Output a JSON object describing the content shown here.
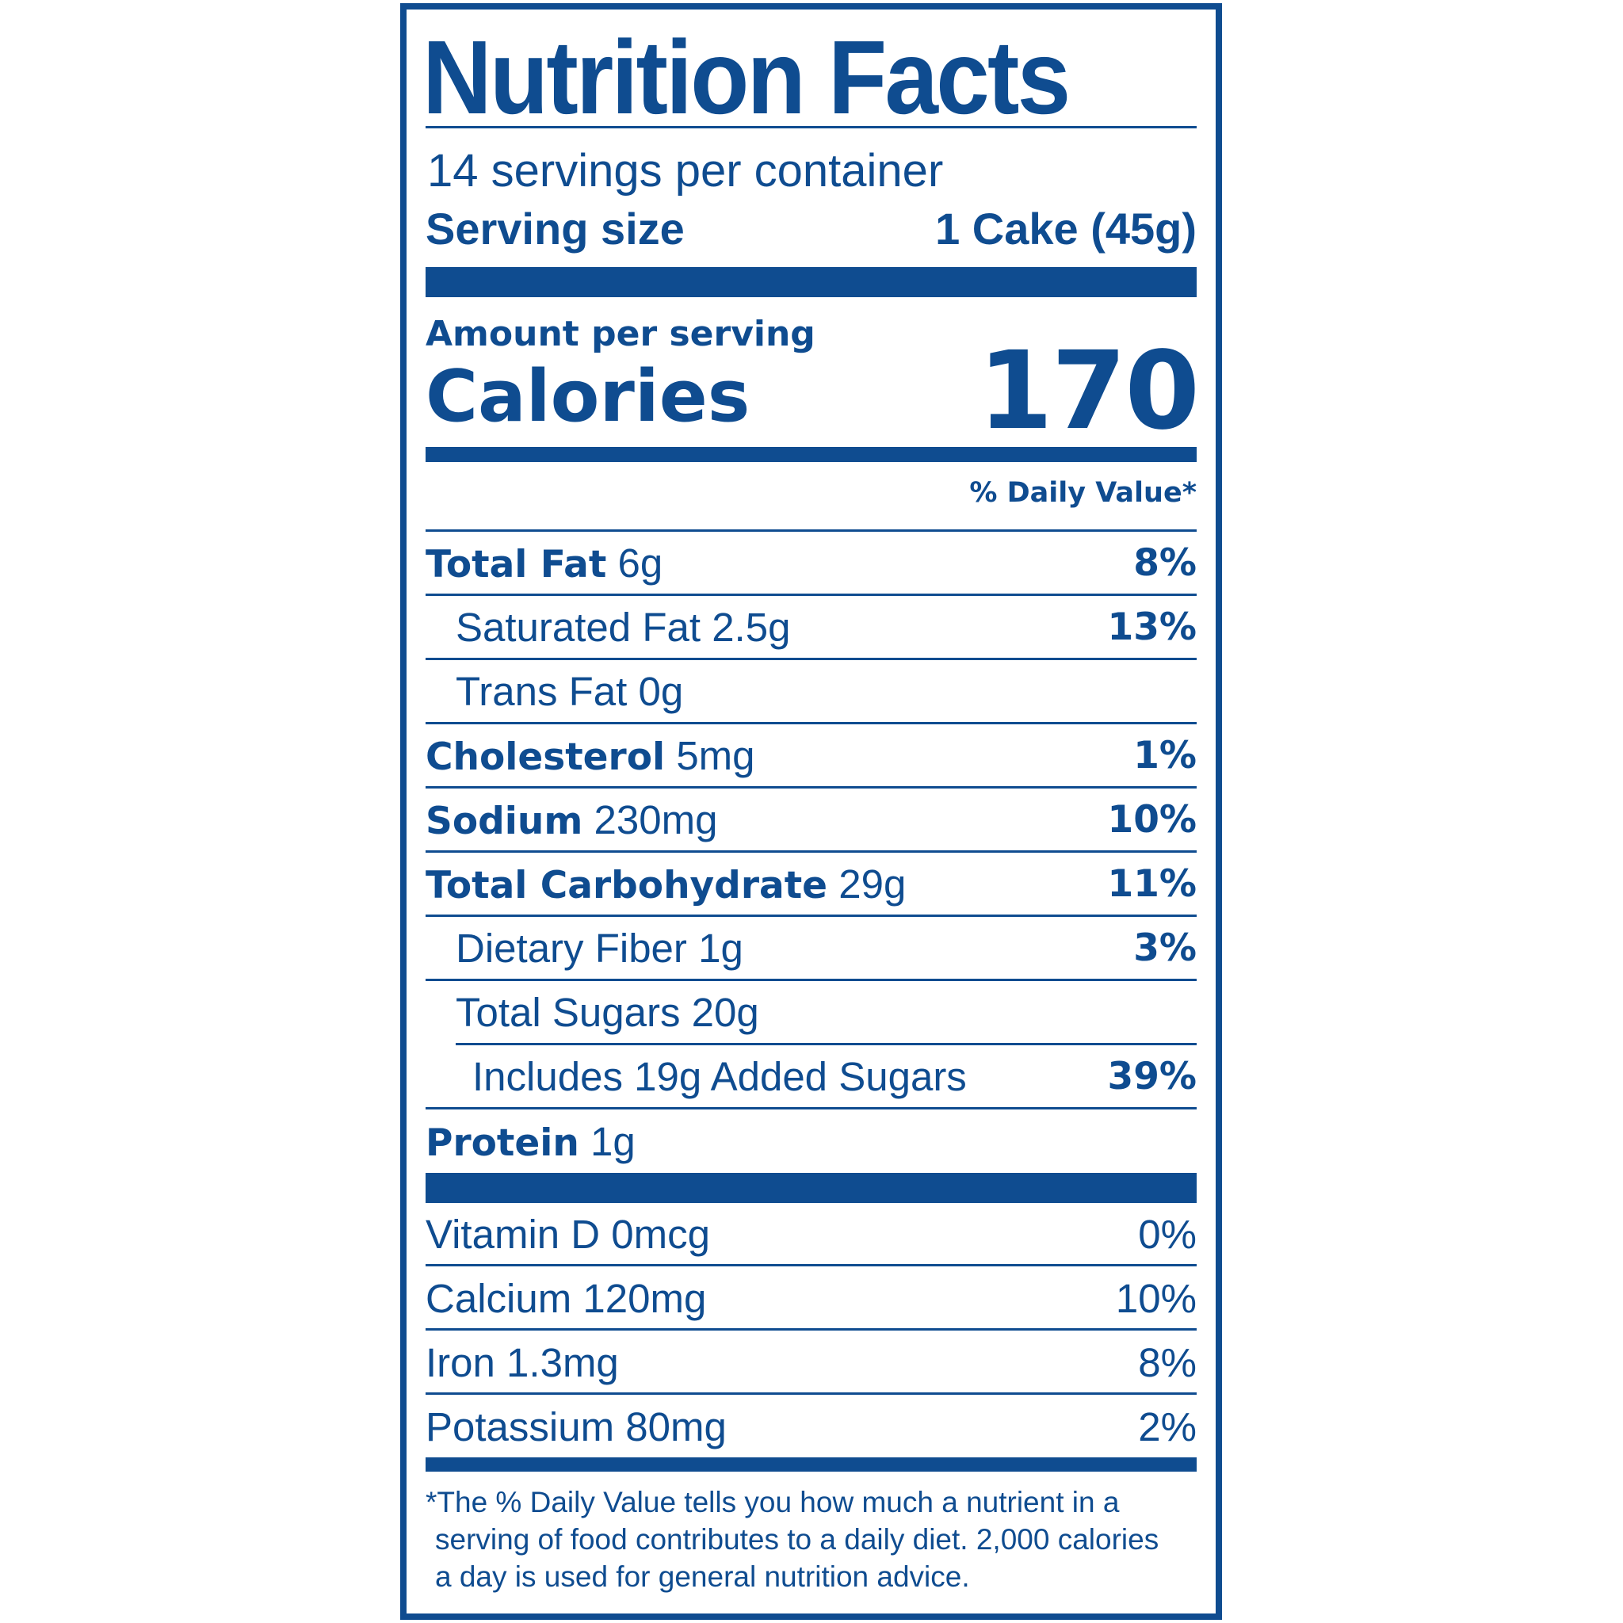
{
  "title": "Nutrition Facts",
  "servings_per_container": "14 servings per container",
  "serving_size": {
    "label": "Serving size",
    "value": "1 Cake (45g)"
  },
  "amount_per_serving": "Amount per serving",
  "calories": {
    "label": "Calories",
    "value": "170"
  },
  "daily_value_header": "% Daily Value*",
  "nutrients": [
    {
      "name": "Total Fat",
      "amount": "6g",
      "dv": "8%"
    },
    {
      "name": "Saturated Fat",
      "amount": "2.5g",
      "dv": "13%"
    },
    {
      "name": "Trans Fat",
      "amount": "0g",
      "dv": ""
    },
    {
      "name": "Cholesterol",
      "amount": "5mg",
      "dv": "1%"
    },
    {
      "name": "Sodium",
      "amount": "230mg",
      "dv": "10%"
    },
    {
      "name": "Total Carbohydrate",
      "amount": "29g",
      "dv": "11%"
    },
    {
      "name": "Dietary Fiber",
      "amount": "1g",
      "dv": "3%"
    },
    {
      "name": "Total Sugars",
      "amount": "20g",
      "dv": ""
    },
    {
      "name": "Includes 19g Added Sugars",
      "amount": "",
      "dv": "39%"
    },
    {
      "name": "Protein",
      "amount": "1g",
      "dv": ""
    }
  ],
  "vitamins": [
    {
      "label": "Vitamin D 0mcg",
      "dv": "0%"
    },
    {
      "label": "Calcium 120mg",
      "dv": "10%"
    },
    {
      "label": "Iron 1.3mg",
      "dv": "8%"
    },
    {
      "label": "Potassium 80mg",
      "dv": "2%"
    }
  ],
  "footnote": [
    "*The % Daily Value tells you how much a nutrient in a",
    "serving of food contributes to a daily diet. 2,000 calories",
    "a day is used for general nutrition advice."
  ],
  "colors": {
    "ink": "#0f4c90",
    "background": "#ffffff"
  }
}
